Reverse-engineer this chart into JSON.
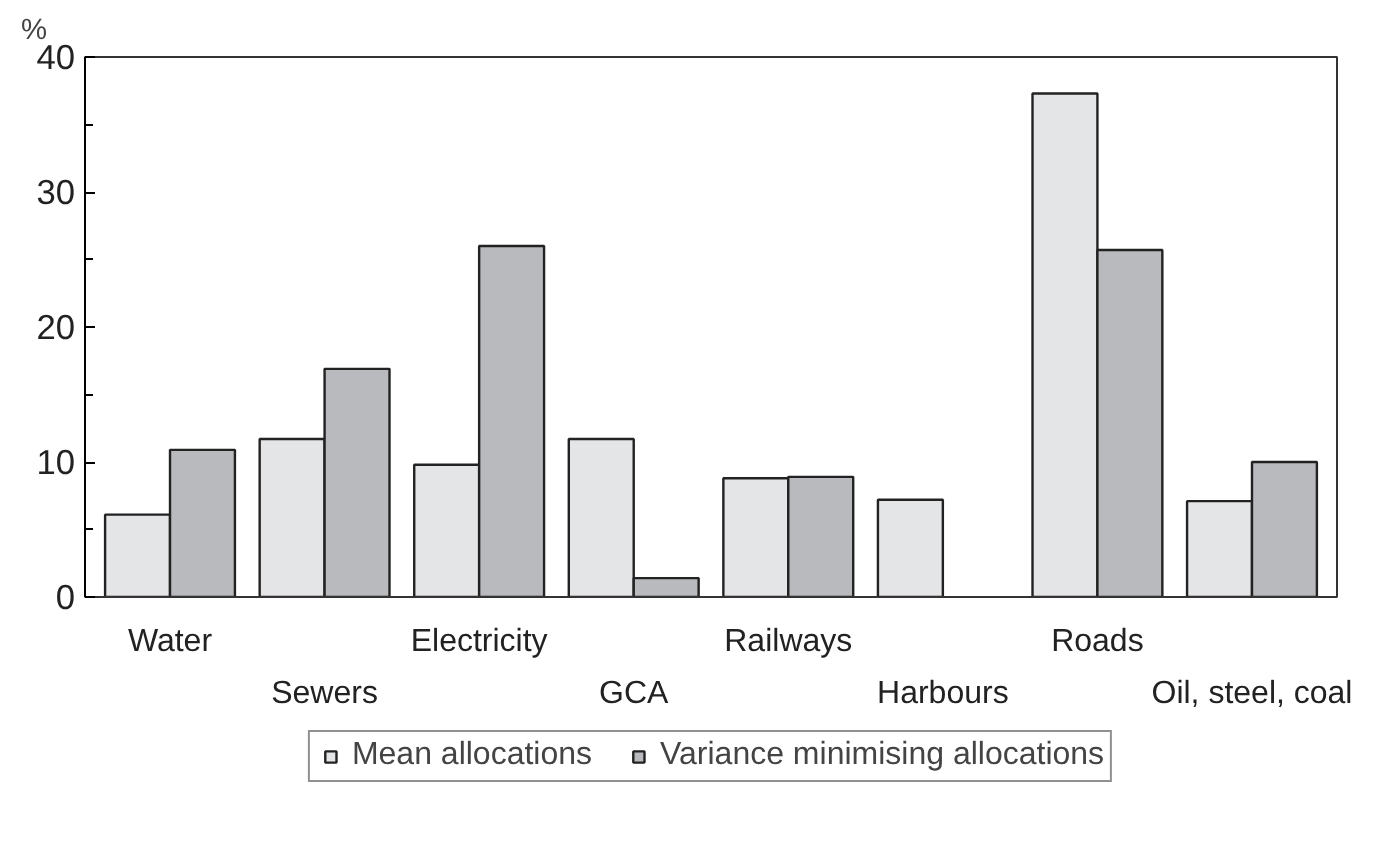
{
  "chart_data": {
    "type": "bar",
    "ylabel": "%",
    "categories": [
      "Water",
      "Sewers",
      "Electricity",
      "GCA",
      "Railways",
      "Harbours",
      "Roads",
      "Oil, steel, coal"
    ],
    "series": [
      {
        "name": "Mean allocations",
        "color": "#e4e5e7",
        "values": [
          6.1,
          11.7,
          9.8,
          11.7,
          8.8,
          7.2,
          37.3,
          7.1
        ]
      },
      {
        "name": "Variance minimising allocations",
        "color": "#b9babd",
        "values": [
          10.9,
          16.9,
          26.0,
          1.4,
          8.9,
          null,
          25.7,
          10.0
        ]
      }
    ],
    "ylim": [
      0,
      40
    ],
    "yticks": [
      0,
      {
        "value": 5,
        "label": null
      },
      10,
      {
        "value": 15,
        "label": null
      },
      20,
      {
        "value": 25,
        "label": null
      },
      30,
      {
        "value": 35,
        "label": null
      },
      40
    ],
    "grid": false,
    "legend": "bottom"
  }
}
